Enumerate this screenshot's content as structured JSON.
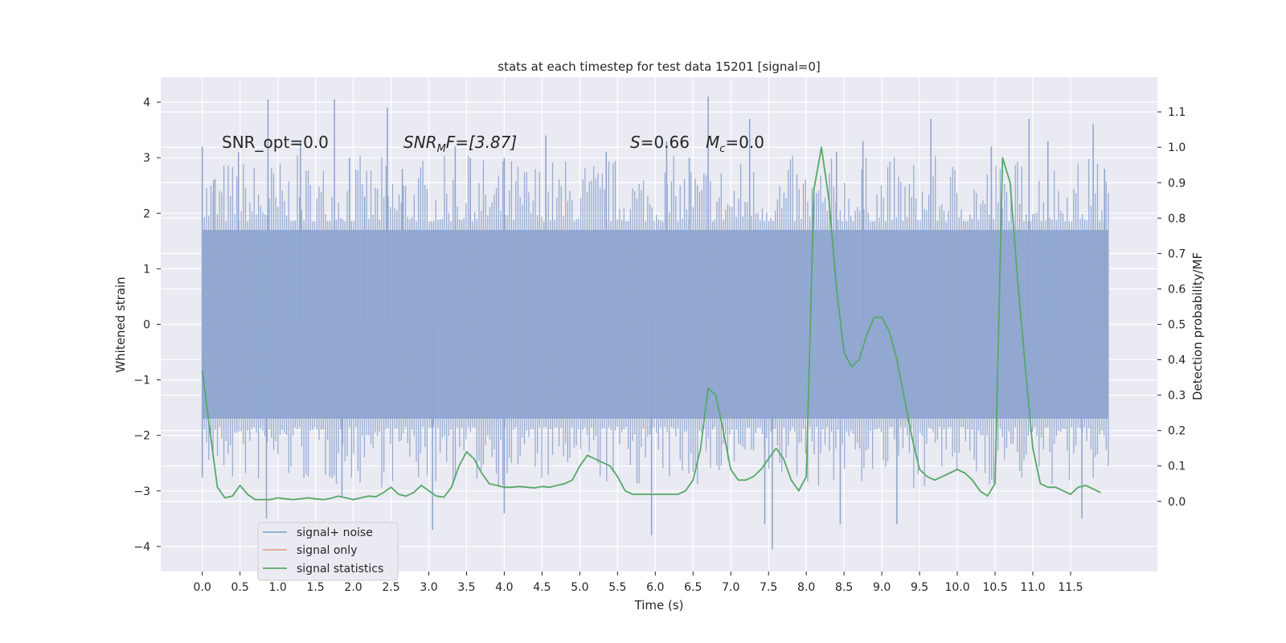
{
  "chart_data": {
    "type": "line",
    "title": "stats at each timestep for test data 15201 [signal=0]",
    "xlabel": "Time (s)",
    "ylabel": "Whitened strain",
    "y2label": "Detection probability/MF",
    "xlim": [
      -0.55,
      12.65
    ],
    "ylim": [
      -4.45,
      4.45
    ],
    "y2lim": [
      -0.198,
      1.198
    ],
    "x_ticks": [
      0.0,
      0.5,
      1.0,
      1.5,
      2.0,
      2.5,
      3.0,
      3.5,
      4.0,
      4.5,
      5.0,
      5.5,
      6.0,
      6.5,
      7.0,
      7.5,
      8.0,
      8.5,
      9.0,
      9.5,
      10.0,
      10.5,
      11.0,
      11.5
    ],
    "x_tick_labels": [
      "0.0",
      "0.5",
      "1.0",
      "1.5",
      "2.0",
      "2.5",
      "3.0",
      "3.5",
      "4.0",
      "4.5",
      "5.0",
      "5.5",
      "6.0",
      "6.5",
      "7.0",
      "7.5",
      "8.0",
      "8.5",
      "9.0",
      "9.5",
      "10.0",
      "10.5",
      "11.0",
      "11.5"
    ],
    "y_ticks": [
      -4,
      -3,
      -2,
      -1,
      0,
      1,
      2,
      3,
      4
    ],
    "y_tick_labels": [
      "−4",
      "−3",
      "−2",
      "−1",
      "0",
      "1",
      "2",
      "3",
      "4"
    ],
    "y2_ticks": [
      0.0,
      0.1,
      0.2,
      0.3,
      0.4,
      0.5,
      0.6,
      0.7,
      0.8,
      0.9,
      1.0,
      1.1
    ],
    "y2_tick_labels": [
      "0.0",
      "0.1",
      "0.2",
      "0.3",
      "0.4",
      "0.5",
      "0.6",
      "0.7",
      "0.8",
      "0.9",
      "1.0",
      "1.1"
    ],
    "grid": true,
    "legend_position": "lower-left",
    "annotations": {
      "snr_opt": "SNR_opt=0.0",
      "snr_mf_prefix": "SNR",
      "snr_mf_sub": "M",
      "snr_mf_suffix": "F=[3.87]",
      "s_var": "S",
      "s_value": "=0.66",
      "mc_var": "M",
      "mc_sub": "c",
      "mc_value": "=0.0"
    },
    "series": [
      {
        "name": "signal+ noise",
        "color": "#8fa6cf",
        "axis": "left",
        "x_range": [
          0.0,
          12.0
        ],
        "envelope_amplitude": 1.7,
        "peaks": [
          {
            "x": 0.0,
            "y": 3.2
          },
          {
            "x": 0.0,
            "y": -2.7
          },
          {
            "x": 0.15,
            "y": 2.6
          },
          {
            "x": 0.48,
            "y": 3.1
          },
          {
            "x": 0.87,
            "y": 4.05
          },
          {
            "x": 0.85,
            "y": -3.5
          },
          {
            "x": 1.3,
            "y": 3.3
          },
          {
            "x": 1.75,
            "y": 4.05
          },
          {
            "x": 1.95,
            "y": 3.0
          },
          {
            "x": 1.85,
            "y": -3.1
          },
          {
            "x": 2.15,
            "y": 2.3
          },
          {
            "x": 2.45,
            "y": 3.9
          },
          {
            "x": 2.65,
            "y": 2.8
          },
          {
            "x": 3.05,
            "y": -3.7
          },
          {
            "x": 3.35,
            "y": 3.2
          },
          {
            "x": 3.55,
            "y": 3.0
          },
          {
            "x": 4.0,
            "y": 3.0
          },
          {
            "x": 4.0,
            "y": -3.4
          },
          {
            "x": 4.55,
            "y": 3.4
          },
          {
            "x": 5.35,
            "y": 3.1
          },
          {
            "x": 5.95,
            "y": -3.8
          },
          {
            "x": 6.15,
            "y": 3.3
          },
          {
            "x": 6.45,
            "y": 3.0
          },
          {
            "x": 6.7,
            "y": 4.1
          },
          {
            "x": 7.25,
            "y": 3.7
          },
          {
            "x": 7.45,
            "y": -3.6
          },
          {
            "x": 7.55,
            "y": -4.05
          },
          {
            "x": 8.4,
            "y": 3.1
          },
          {
            "x": 8.45,
            "y": -3.6
          },
          {
            "x": 8.75,
            "y": 3.3
          },
          {
            "x": 9.2,
            "y": -3.6
          },
          {
            "x": 9.65,
            "y": 3.7
          },
          {
            "x": 10.45,
            "y": 3.2
          },
          {
            "x": 10.95,
            "y": 3.7
          },
          {
            "x": 11.2,
            "y": 3.3
          },
          {
            "x": 11.65,
            "y": -3.5
          },
          {
            "x": 11.8,
            "y": 3.6
          },
          {
            "x": 11.95,
            "y": 2.8
          }
        ]
      },
      {
        "name": "signal only",
        "color": "#e8a28a",
        "axis": "left",
        "x": [],
        "y": []
      },
      {
        "name": "signal statistics",
        "color": "#55a868",
        "axis": "right",
        "x": [
          0.0,
          0.1,
          0.2,
          0.3,
          0.4,
          0.5,
          0.6,
          0.7,
          0.8,
          0.9,
          1.0,
          1.1,
          1.2,
          1.3,
          1.4,
          1.5,
          1.6,
          1.7,
          1.8,
          1.9,
          2.0,
          2.1,
          2.2,
          2.3,
          2.4,
          2.5,
          2.6,
          2.7,
          2.8,
          2.9,
          3.0,
          3.1,
          3.2,
          3.3,
          3.4,
          3.5,
          3.6,
          3.7,
          3.8,
          3.9,
          4.0,
          4.1,
          4.2,
          4.3,
          4.4,
          4.5,
          4.6,
          4.7,
          4.8,
          4.9,
          5.0,
          5.1,
          5.2,
          5.3,
          5.4,
          5.5,
          5.6,
          5.7,
          5.8,
          5.9,
          6.0,
          6.1,
          6.2,
          6.3,
          6.4,
          6.5,
          6.6,
          6.7,
          6.8,
          6.9,
          7.0,
          7.1,
          7.2,
          7.3,
          7.4,
          7.5,
          7.6,
          7.7,
          7.8,
          7.9,
          8.0,
          8.1,
          8.2,
          8.3,
          8.4,
          8.5,
          8.6,
          8.7,
          8.8,
          8.9,
          9.0,
          9.1,
          9.2,
          9.3,
          9.4,
          9.5,
          9.6,
          9.7,
          9.8,
          9.9,
          10.0,
          10.1,
          10.2,
          10.3,
          10.4,
          10.5,
          10.6,
          10.7,
          10.8,
          10.9,
          11.0,
          11.1,
          11.2,
          11.3,
          11.4,
          11.5,
          11.6,
          11.7,
          11.8,
          11.9
        ],
        "y": [
          0.37,
          0.2,
          0.04,
          0.01,
          0.015,
          0.045,
          0.02,
          0.005,
          0.005,
          0.005,
          0.01,
          0.007,
          0.005,
          0.007,
          0.01,
          0.007,
          0.005,
          0.008,
          0.015,
          0.01,
          0.005,
          0.01,
          0.015,
          0.013,
          0.025,
          0.04,
          0.02,
          0.015,
          0.025,
          0.045,
          0.03,
          0.015,
          0.012,
          0.04,
          0.1,
          0.14,
          0.12,
          0.08,
          0.05,
          0.045,
          0.04,
          0.04,
          0.042,
          0.04,
          0.038,
          0.042,
          0.04,
          0.045,
          0.05,
          0.06,
          0.1,
          0.13,
          0.12,
          0.11,
          0.1,
          0.07,
          0.03,
          0.02,
          0.02,
          0.02,
          0.02,
          0.02,
          0.02,
          0.02,
          0.03,
          0.06,
          0.15,
          0.32,
          0.3,
          0.2,
          0.09,
          0.06,
          0.06,
          0.07,
          0.09,
          0.12,
          0.15,
          0.12,
          0.06,
          0.03,
          0.07,
          0.88,
          1.0,
          0.85,
          0.6,
          0.42,
          0.38,
          0.4,
          0.47,
          0.52,
          0.52,
          0.48,
          0.4,
          0.29,
          0.18,
          0.09,
          0.07,
          0.06,
          0.07,
          0.08,
          0.09,
          0.08,
          0.06,
          0.03,
          0.015,
          0.05,
          0.97,
          0.9,
          0.62,
          0.38,
          0.15,
          0.05,
          0.04,
          0.04,
          0.03,
          0.02,
          0.04,
          0.045,
          0.035,
          0.025
        ]
      }
    ]
  }
}
